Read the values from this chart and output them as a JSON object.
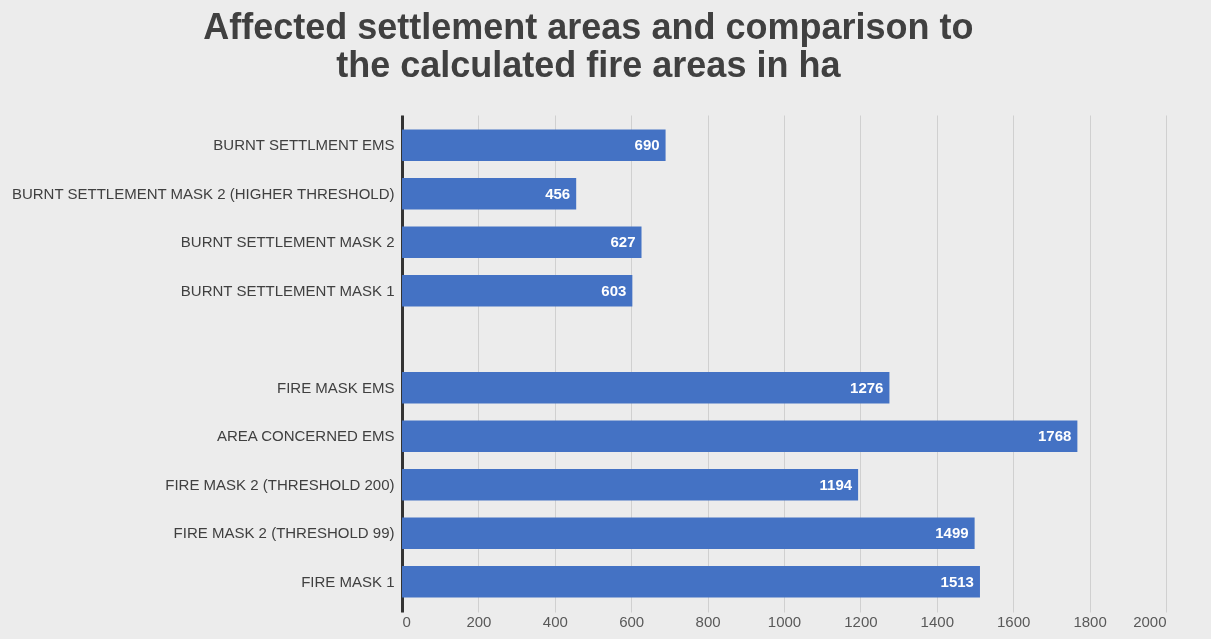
{
  "chart_data": {
    "type": "bar",
    "orientation": "horizontal",
    "title": [
      "Affected settlement areas and comparison to",
      "the calculated fire areas in ha"
    ],
    "categories": [
      "BURNT SETTLMENT EMS",
      "BURNT SETTLEMENT MASK 2 (HIGHER THRESHOLD)",
      "BURNT SETTLEMENT MASK 2",
      "BURNT SETTLEMENT MASK 1",
      null,
      "FIRE MASK EMS",
      "AREA CONCERNED EMS",
      "FIRE MASK 2 (THRESHOLD 200)",
      "FIRE MASK 2 (THRESHOLD 99)",
      "FIRE MASK 1"
    ],
    "values": [
      690,
      456,
      627,
      603,
      null,
      1276,
      1768,
      1194,
      1499,
      1513
    ],
    "color": "#4472c4",
    "xlim": [
      0,
      2000
    ],
    "xticks": [
      0,
      200,
      400,
      600,
      800,
      1000,
      1200,
      1400,
      1600,
      1800,
      2000
    ],
    "grid": "x",
    "data_labels": true
  }
}
